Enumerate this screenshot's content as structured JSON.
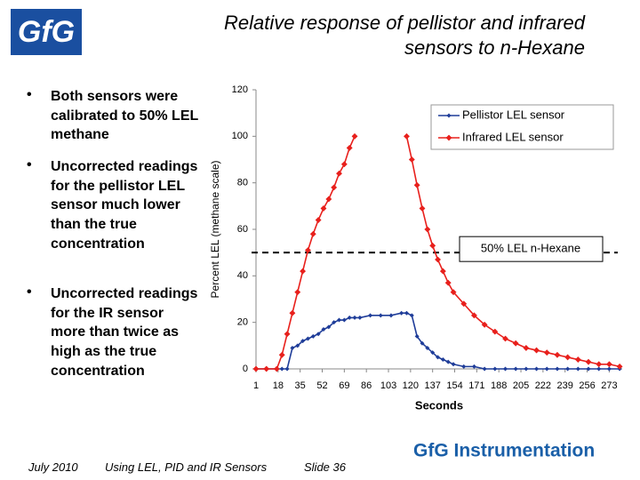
{
  "slide": {
    "logo": "GfG",
    "brand": "GfG Instrumentation",
    "bullets": [
      "Both sensors were calibrated to 50% LEL methane",
      "Uncorrected readings for the pellistor LEL sensor much lower than the true concentration",
      "Uncorrected readings for the IR sensor more than twice as high as the true concentration"
    ],
    "footer": [
      "July 2010",
      "Using LEL, PID and IR Sensors",
      "Slide 36"
    ]
  },
  "chart_data": {
    "type": "line",
    "title": "Relative response of pellistor and infrared sensors to n-Hexane",
    "x_label": "Seconds",
    "y_label": "Percent LEL (methane scale)",
    "x": [
      1,
      9,
      17,
      21,
      25,
      29,
      33,
      37,
      41,
      45,
      49,
      53,
      57,
      61,
      65,
      69,
      73,
      77,
      81,
      89,
      97,
      105,
      113,
      117,
      121,
      125,
      129,
      133,
      137,
      141,
      145,
      149,
      153,
      161,
      169,
      177,
      185,
      193,
      201,
      209,
      217,
      225,
      233,
      241,
      249,
      257,
      265,
      273,
      281
    ],
    "series": [
      {
        "name": "Pellistor LEL sensor",
        "color": "#1f3d99",
        "marker": "diamond",
        "values": [
          0,
          0,
          0,
          0,
          0,
          9,
          10,
          12,
          13,
          14,
          15,
          17,
          18,
          20,
          21,
          21,
          22,
          22,
          22,
          23,
          23,
          23,
          24,
          24,
          23,
          14,
          11,
          9,
          7,
          5,
          4,
          3,
          2,
          1,
          1,
          0,
          0,
          0,
          0,
          0,
          0,
          0,
          0,
          0,
          0,
          0,
          0,
          0,
          0
        ]
      },
      {
        "name": "Infrared LEL sensor",
        "color": "#e8201c",
        "marker": "plus",
        "values": [
          0,
          0,
          0,
          6,
          15,
          24,
          33,
          42,
          51,
          58,
          64,
          69,
          73,
          78,
          84,
          88,
          95,
          100,
          null,
          null,
          null,
          null,
          null,
          100,
          90,
          79,
          69,
          60,
          53,
          47,
          42,
          37,
          33,
          28,
          23,
          19,
          16,
          13,
          11,
          9,
          8,
          7,
          6,
          5,
          4,
          3,
          2,
          2,
          1
        ]
      }
    ],
    "xlim": [
      1,
      283
    ],
    "xticks": [
      1,
      18,
      35,
      52,
      69,
      86,
      103,
      120,
      137,
      154,
      171,
      188,
      205,
      222,
      239,
      256,
      273
    ],
    "ylim": [
      0,
      120
    ],
    "yticks": [
      0,
      20,
      40,
      60,
      80,
      100,
      120
    ],
    "grid": false,
    "legend": "upper right",
    "reference_line": {
      "value": 50,
      "label": "50% LEL n-Hexane"
    }
  }
}
